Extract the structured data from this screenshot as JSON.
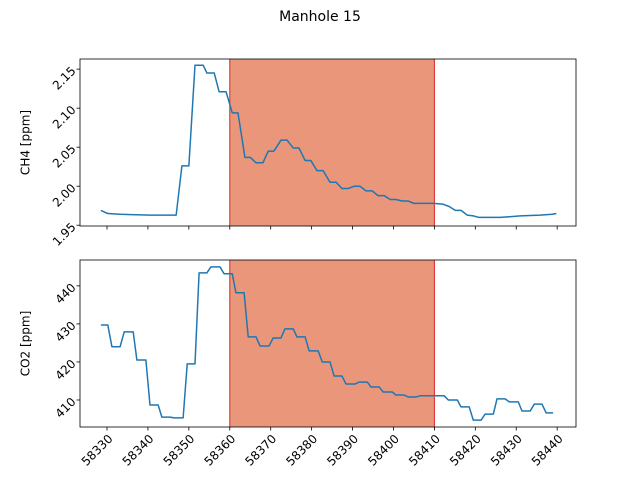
{
  "title": "Manhole 15",
  "chart_data": [
    {
      "type": "line",
      "ylabel": "CH4 [ppm]",
      "xlim": [
        58323.4,
        58444.6
      ],
      "xticks": [
        58330,
        58340,
        58350,
        58360,
        58370,
        58380,
        58390,
        58400,
        58410,
        58420,
        58430,
        58440
      ],
      "xtick_labels": false,
      "ylim": [
        1.949,
        2.163
      ],
      "yticks": [
        1.95,
        {
          "value": 2.0,
          "label": "2.00"
        },
        2.05,
        {
          "value": 2.1,
          "label": "2.10"
        },
        2.15
      ],
      "span": [
        58360,
        58410
      ],
      "span_color": "#e9967a",
      "span_edge": "#d62728",
      "x": [
        58328.5,
        58330.2,
        58333.2,
        58340.5,
        58346.9,
        58348.3,
        58350.0,
        58351.5,
        58353.5,
        58354.4,
        58356.2,
        58357.4,
        58359.1,
        58360.6,
        58362.0,
        58363.7,
        58365.0,
        58366.4,
        58368.1,
        58369.4,
        58370.8,
        58372.5,
        58374.0,
        58375.5,
        58376.9,
        58378.4,
        58379.8,
        58381.3,
        58382.8,
        58384.5,
        58386.0,
        58387.4,
        58388.9,
        58390.4,
        58391.8,
        58393.3,
        58394.8,
        58396.2,
        58397.7,
        58399.2,
        58400.6,
        58402.1,
        58403.6,
        58405.0,
        58409.7,
        58412.1,
        58413.6,
        58415.1,
        58416.5,
        58418.0,
        58419.5,
        58420.9,
        58426.1,
        58431.0,
        58435.8,
        58438.8,
        58439.8
      ],
      "series": [
        {
          "color": "#1f77b4",
          "values": [
            1.969,
            1.965,
            1.964,
            1.963,
            1.963,
            2.026,
            2.026,
            2.155,
            2.155,
            2.145,
            2.145,
            2.121,
            2.121,
            2.094,
            2.094,
            2.037,
            2.037,
            2.03,
            2.03,
            2.045,
            2.045,
            2.059,
            2.059,
            2.049,
            2.049,
            2.033,
            2.033,
            2.02,
            2.02,
            2.005,
            2.005,
            1.997,
            1.997,
            2.0,
            2.0,
            1.994,
            1.994,
            1.988,
            1.988,
            1.983,
            1.983,
            1.981,
            1.981,
            1.978,
            1.978,
            1.977,
            1.974,
            1.969,
            1.969,
            1.963,
            1.962,
            1.96,
            1.96,
            1.962,
            1.963,
            1.964,
            1.965
          ]
        }
      ]
    },
    {
      "type": "line",
      "ylabel": "CO2 [ppm]",
      "xlim": [
        58323.4,
        58444.6
      ],
      "xticks": [
        58330,
        58340,
        58350,
        58360,
        58370,
        58380,
        58390,
        58400,
        58410,
        58420,
        58430,
        58440
      ],
      "xtick_labels": true,
      "ylim": [
        402.9,
        446.8
      ],
      "yticks": [
        410,
        420,
        430,
        440
      ],
      "span": [
        58360,
        58410
      ],
      "span_color": "#e9967a",
      "span_edge": "#d62728",
      "x": [
        58328.5,
        58330.2,
        58331.2,
        58333.2,
        58334.2,
        58336.4,
        58337.3,
        58339.5,
        58340.5,
        58342.5,
        58343.4,
        58345.4,
        58346.4,
        58348.6,
        58349.6,
        58351.5,
        58352.5,
        58354.4,
        58355.4,
        58357.6,
        58358.6,
        58360.6,
        58361.5,
        58363.5,
        58364.5,
        58366.4,
        58367.4,
        58369.6,
        58370.6,
        58372.5,
        58373.5,
        58375.5,
        58376.4,
        58378.4,
        58379.4,
        58381.6,
        58382.6,
        58384.5,
        58385.5,
        58387.4,
        58388.4,
        58390.6,
        58391.6,
        58393.6,
        58394.5,
        58396.5,
        58397.5,
        58399.7,
        58400.6,
        58402.6,
        58403.6,
        58405.5,
        58406.5,
        58412.4,
        58413.4,
        58415.6,
        58416.5,
        58418.5,
        58419.5,
        58421.4,
        58422.4,
        58424.4,
        58425.3,
        58427.3,
        58428.3,
        58430.5,
        58431.4,
        58433.4,
        58434.4,
        58436.3,
        58437.3,
        58439.0
      ],
      "series": [
        {
          "color": "#1f77b4",
          "values": [
            429.7,
            429.7,
            424.0,
            424.0,
            427.9,
            427.9,
            420.5,
            420.5,
            408.7,
            408.7,
            405.5,
            405.5,
            405.3,
            405.3,
            419.5,
            419.5,
            443.4,
            443.4,
            445.0,
            445.0,
            443.2,
            443.2,
            438.2,
            438.2,
            426.6,
            426.6,
            424.2,
            424.2,
            426.3,
            426.3,
            428.7,
            428.7,
            426.6,
            426.6,
            422.9,
            422.9,
            420.0,
            420.0,
            416.3,
            416.3,
            414.2,
            414.2,
            414.7,
            414.7,
            413.4,
            413.4,
            412.1,
            412.1,
            411.3,
            411.3,
            410.8,
            410.8,
            411.1,
            411.1,
            410.0,
            410.0,
            408.2,
            408.2,
            404.7,
            404.7,
            406.3,
            406.3,
            410.3,
            410.3,
            409.5,
            409.5,
            407.1,
            407.1,
            408.9,
            408.9,
            406.6,
            406.6
          ]
        }
      ]
    }
  ]
}
